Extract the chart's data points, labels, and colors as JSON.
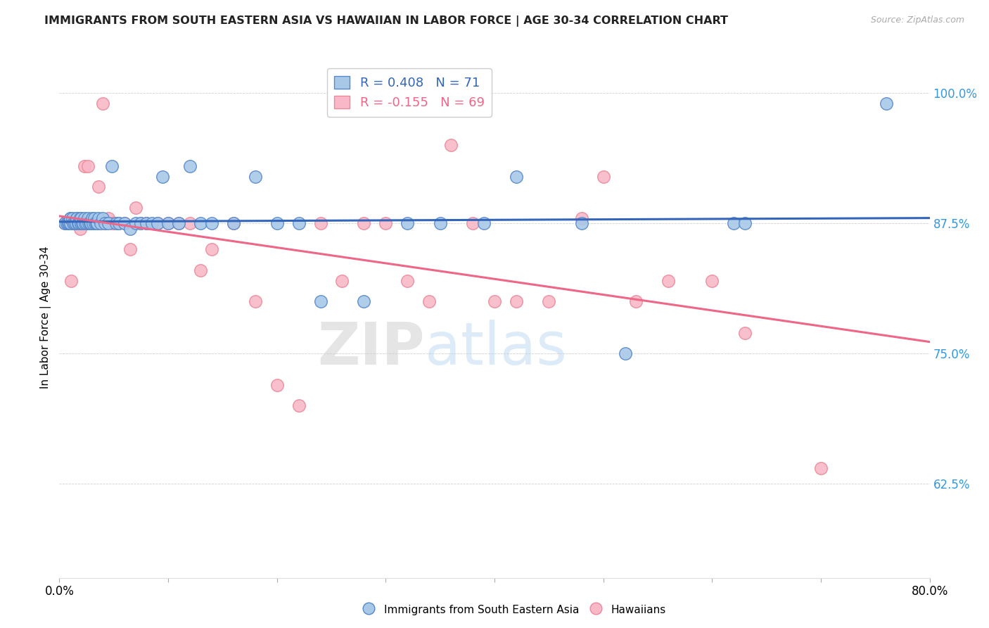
{
  "title": "IMMIGRANTS FROM SOUTH EASTERN ASIA VS HAWAIIAN IN LABOR FORCE | AGE 30-34 CORRELATION CHART",
  "source": "Source: ZipAtlas.com",
  "ylabel": "In Labor Force | Age 30-34",
  "ytick_labels": [
    "62.5%",
    "75.0%",
    "87.5%",
    "100.0%"
  ],
  "ytick_values": [
    0.625,
    0.75,
    0.875,
    1.0
  ],
  "xlim": [
    0.0,
    0.8
  ],
  "ylim": [
    0.535,
    1.035
  ],
  "r_blue": 0.408,
  "n_blue": 71,
  "r_pink": -0.155,
  "n_pink": 69,
  "blue_color": "#a8c8e8",
  "blue_edge_color": "#5588cc",
  "blue_line_color": "#3366bb",
  "pink_color": "#f8b8c8",
  "pink_edge_color": "#ee8899",
  "pink_line_color": "#ee6688",
  "blue_scatter_x": [
    0.005,
    0.007,
    0.008,
    0.009,
    0.01,
    0.01,
    0.01,
    0.01,
    0.012,
    0.013,
    0.014,
    0.015,
    0.016,
    0.016,
    0.017,
    0.018,
    0.019,
    0.02,
    0.02,
    0.02,
    0.021,
    0.022,
    0.023,
    0.024,
    0.025,
    0.026,
    0.027,
    0.028,
    0.029,
    0.03,
    0.031,
    0.032,
    0.033,
    0.034,
    0.035,
    0.036,
    0.038,
    0.04,
    0.042,
    0.045,
    0.048,
    0.052,
    0.055,
    0.06,
    0.065,
    0.07,
    0.075,
    0.08,
    0.085,
    0.09,
    0.095,
    0.1,
    0.11,
    0.12,
    0.13,
    0.14,
    0.16,
    0.18,
    0.2,
    0.22,
    0.24,
    0.28,
    0.32,
    0.35,
    0.39,
    0.42,
    0.48,
    0.52,
    0.62,
    0.63,
    0.76
  ],
  "blue_scatter_y": [
    0.875,
    0.875,
    0.875,
    0.875,
    0.875,
    0.875,
    0.88,
    0.88,
    0.88,
    0.875,
    0.875,
    0.875,
    0.88,
    0.88,
    0.875,
    0.875,
    0.88,
    0.875,
    0.875,
    0.88,
    0.875,
    0.875,
    0.88,
    0.875,
    0.875,
    0.88,
    0.875,
    0.875,
    0.875,
    0.88,
    0.875,
    0.88,
    0.875,
    0.875,
    0.875,
    0.88,
    0.875,
    0.88,
    0.875,
    0.875,
    0.93,
    0.875,
    0.875,
    0.875,
    0.87,
    0.875,
    0.875,
    0.875,
    0.875,
    0.875,
    0.92,
    0.875,
    0.875,
    0.93,
    0.875,
    0.875,
    0.875,
    0.92,
    0.875,
    0.875,
    0.8,
    0.8,
    0.875,
    0.875,
    0.875,
    0.92,
    0.875,
    0.75,
    0.875,
    0.875,
    0.99
  ],
  "pink_scatter_x": [
    0.005,
    0.006,
    0.007,
    0.008,
    0.009,
    0.01,
    0.01,
    0.011,
    0.012,
    0.013,
    0.014,
    0.015,
    0.016,
    0.017,
    0.018,
    0.019,
    0.02,
    0.021,
    0.022,
    0.023,
    0.024,
    0.025,
    0.026,
    0.027,
    0.028,
    0.03,
    0.032,
    0.034,
    0.036,
    0.038,
    0.04,
    0.042,
    0.045,
    0.048,
    0.05,
    0.055,
    0.06,
    0.065,
    0.07,
    0.075,
    0.08,
    0.09,
    0.1,
    0.11,
    0.12,
    0.13,
    0.14,
    0.16,
    0.18,
    0.2,
    0.22,
    0.24,
    0.26,
    0.28,
    0.3,
    0.32,
    0.34,
    0.36,
    0.38,
    0.4,
    0.42,
    0.45,
    0.48,
    0.5,
    0.53,
    0.56,
    0.6,
    0.63,
    0.7
  ],
  "pink_scatter_y": [
    0.875,
    0.875,
    0.875,
    0.875,
    0.875,
    0.875,
    0.875,
    0.82,
    0.875,
    0.875,
    0.875,
    0.875,
    0.875,
    0.875,
    0.875,
    0.87,
    0.875,
    0.875,
    0.875,
    0.93,
    0.875,
    0.875,
    0.93,
    0.875,
    0.875,
    0.875,
    0.875,
    0.875,
    0.91,
    0.875,
    0.99,
    0.875,
    0.88,
    0.875,
    0.875,
    0.875,
    0.875,
    0.85,
    0.89,
    0.875,
    0.875,
    0.875,
    0.875,
    0.875,
    0.875,
    0.83,
    0.85,
    0.875,
    0.8,
    0.72,
    0.7,
    0.875,
    0.82,
    0.875,
    0.875,
    0.82,
    0.8,
    0.95,
    0.875,
    0.8,
    0.8,
    0.8,
    0.88,
    0.92,
    0.8,
    0.82,
    0.82,
    0.77,
    0.64
  ],
  "legend_label_blue": "Immigrants from South Eastern Asia",
  "legend_label_pink": "Hawaiians",
  "watermark_zip": "ZIP",
  "watermark_atlas": "atlas",
  "title_color": "#222222",
  "ytick_color": "#3399dd",
  "source_color": "#aaaaaa"
}
